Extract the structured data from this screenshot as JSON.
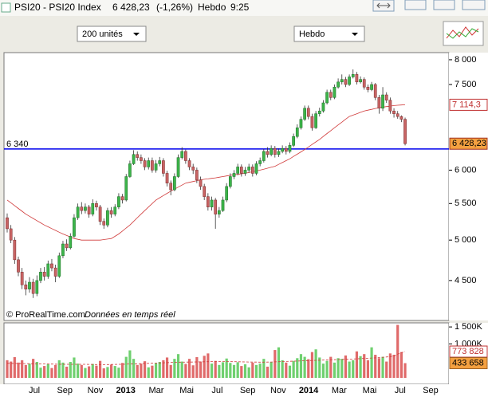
{
  "header": {
    "instrument": "PSI20 - PSI20 Index",
    "price": "6 428,23",
    "change": "(-1,26%)",
    "period": "Hebdo",
    "time": "9:25"
  },
  "toolbar": {
    "units": "200 unités",
    "period": "Hebdo"
  },
  "chart_data": [
    {
      "type": "candlestick",
      "log": true,
      "ylim": [
        4055,
        8150
      ],
      "yticks": [
        {
          "value": 8000,
          "label": "8 000"
        },
        {
          "value": 7500,
          "label": "7 500"
        },
        {
          "value": 6000,
          "label": "6 000"
        },
        {
          "value": 5500,
          "label": "5 500"
        },
        {
          "value": 5000,
          "label": "5 000"
        },
        {
          "value": 4500,
          "label": "4 500"
        }
      ],
      "credit": "© ProRealTime.com",
      "credit_note": "Données en temps réel",
      "up_color": "#3cb44a",
      "down_color": "#c86464",
      "last_label": "6 428,23",
      "open": [
        5300,
        5150,
        5000,
        4750,
        4600,
        4450,
        4400,
        4480,
        4350,
        4500,
        4600,
        4550,
        4700,
        4650,
        4550,
        4800,
        4950,
        4900,
        5050,
        5300,
        5450,
        5400,
        5450,
        5350,
        5500,
        5450,
        5250,
        5200,
        5400,
        5350,
        5450,
        5600,
        5550,
        5900,
        6100,
        6250,
        6200,
        6150,
        6050,
        6150,
        6000,
        6100,
        6150,
        5950,
        5800,
        5700,
        5900,
        6200,
        6300,
        6150,
        6050,
        6000,
        5850,
        5750,
        5600,
        5450,
        5550,
        5350,
        5400,
        5550,
        5750,
        5900,
        5950,
        6050,
        5950,
        6000,
        6050,
        5950,
        6100,
        6150,
        6300,
        6250,
        6350,
        6250,
        6300,
        6350,
        6300,
        6400,
        6550,
        6700,
        6850,
        7050,
        6900,
        6700,
        6950,
        7000,
        7150,
        7350,
        7250,
        7450,
        7550,
        7600,
        7500,
        7650,
        7700,
        7550,
        7600,
        7450,
        7400,
        7500,
        7250,
        7050,
        7300,
        7200,
        7000,
        6950,
        6900,
        6850
      ],
      "high": [
        5360,
        5200,
        5040,
        4790,
        4650,
        4500,
        4540,
        4520,
        4560,
        4650,
        4660,
        4740,
        4760,
        4690,
        4840,
        4990,
        5010,
        5090,
        5350,
        5500,
        5520,
        5500,
        5480,
        5560,
        5540,
        5480,
        5290,
        5440,
        5450,
        5490,
        5650,
        5640,
        5940,
        6150,
        6320,
        6300,
        6250,
        6190,
        6200,
        6200,
        6160,
        6210,
        6190,
        5990,
        5840,
        5950,
        6250,
        6370,
        6330,
        6190,
        6100,
        6040,
        5900,
        5790,
        5650,
        5600,
        5580,
        5450,
        5600,
        5800,
        5950,
        6000,
        6100,
        6090,
        6050,
        6100,
        6090,
        6140,
        6200,
        6340,
        6370,
        6400,
        6390,
        6350,
        6400,
        6390,
        6450,
        6600,
        6760,
        6900,
        7100,
        7100,
        6950,
        7000,
        7060,
        7200,
        7400,
        7400,
        7500,
        7620,
        7700,
        7650,
        7700,
        7800,
        7750,
        7660,
        7640,
        7500,
        7550,
        7530,
        7300,
        7450,
        7350,
        7250,
        7050,
        7000,
        6920,
        6880
      ],
      "low": [
        5100,
        4960,
        4700,
        4550,
        4400,
        4330,
        4360,
        4300,
        4320,
        4470,
        4500,
        4520,
        4610,
        4480,
        4530,
        4770,
        4860,
        4880,
        5030,
        5270,
        5350,
        5360,
        5300,
        5320,
        5400,
        5200,
        5150,
        5170,
        5300,
        5320,
        5420,
        5500,
        5530,
        5880,
        6080,
        6150,
        6100,
        6000,
        6010,
        5960,
        5960,
        6060,
        5900,
        5750,
        5620,
        5680,
        5880,
        6170,
        6100,
        6000,
        5940,
        5800,
        5700,
        5550,
        5400,
        5400,
        5150,
        5300,
        5380,
        5520,
        5720,
        5860,
        5920,
        5900,
        5910,
        5960,
        5900,
        5920,
        6060,
        6120,
        6200,
        6220,
        6200,
        6210,
        6270,
        6250,
        6270,
        6370,
        6520,
        6670,
        6820,
        6850,
        6650,
        6680,
        6900,
        6970,
        7120,
        7200,
        7220,
        7420,
        7500,
        7450,
        7470,
        7620,
        7500,
        7520,
        7400,
        7350,
        7370,
        7200,
        6950,
        7000,
        7150,
        6950,
        6880,
        6860,
        6800,
        6400
      ],
      "close": [
        5150,
        5000,
        4750,
        4600,
        4450,
        4400,
        4480,
        4350,
        4500,
        4600,
        4550,
        4700,
        4650,
        4550,
        4800,
        4950,
        4900,
        5050,
        5300,
        5450,
        5400,
        5450,
        5350,
        5500,
        5450,
        5250,
        5200,
        5400,
        5350,
        5450,
        5600,
        5550,
        5900,
        6100,
        6250,
        6200,
        6150,
        6050,
        6150,
        6000,
        6100,
        6150,
        5950,
        5800,
        5700,
        5900,
        6200,
        6300,
        6150,
        6050,
        6000,
        5850,
        5750,
        5600,
        5450,
        5550,
        5350,
        5400,
        5550,
        5750,
        5900,
        5950,
        6050,
        5950,
        6000,
        6050,
        5950,
        6100,
        6150,
        6300,
        6250,
        6350,
        6250,
        6300,
        6350,
        6300,
        6400,
        6550,
        6700,
        6850,
        7050,
        6900,
        6700,
        6950,
        7000,
        7150,
        7350,
        7250,
        7450,
        7550,
        7600,
        7500,
        7650,
        7700,
        7550,
        7600,
        7450,
        7400,
        7500,
        7250,
        7050,
        7300,
        7200,
        7000,
        6950,
        6900,
        6850,
        6428.23
      ],
      "lines": [
        {
          "color": "#d03a3a",
          "last_label": "7 114,3",
          "values": [
            5550,
            5510,
            5470,
            5430,
            5390,
            5350,
            5320,
            5290,
            5260,
            5230,
            5200,
            5176,
            5152,
            5128,
            5104,
            5080,
            5060,
            5040,
            5020,
            5010,
            5000,
            5000,
            5000,
            5000,
            5000,
            5000,
            5007,
            5013,
            5020,
            5050,
            5080,
            5120,
            5160,
            5200,
            5250,
            5300,
            5350,
            5400,
            5450,
            5500,
            5550,
            5583,
            5615,
            5648,
            5680,
            5710,
            5740,
            5770,
            5800,
            5812,
            5825,
            5838,
            5850,
            5858,
            5865,
            5873,
            5880,
            5890,
            5900,
            5910,
            5920,
            5928,
            5935,
            5943,
            5950,
            5963,
            5975,
            5988,
            6000,
            6015,
            6030,
            6045,
            6060,
            6090,
            6120,
            6150,
            6180,
            6218,
            6255,
            6293,
            6330,
            6373,
            6415,
            6458,
            6500,
            6550,
            6600,
            6650,
            6700,
            6750,
            6800,
            6850,
            6900,
            6925,
            6950,
            6975,
            7000,
            7015,
            7030,
            7045,
            7060,
            7070,
            7080,
            7090,
            7100,
            7105,
            7110,
            7114.3
          ]
        }
      ],
      "hlines": [
        {
          "value": 6340,
          "label": "6 340",
          "color": "#0000ee"
        }
      ]
    },
    {
      "type": "bar",
      "ylim": [
        0,
        1620000
      ],
      "yticks": [
        {
          "value": 1500000,
          "label": "1 500K"
        },
        {
          "value": 1000000,
          "label": "1 000K"
        }
      ],
      "up_color": "#6fd06f",
      "down_color": "#e06a6a",
      "last_label": "433 658",
      "x_labels": [
        "Jul",
        "Sep",
        "Nov",
        "2013",
        "Mar",
        "Mai",
        "Jul",
        "Sep",
        "Nov",
        "2014",
        "Mar",
        "Mai",
        "Jul",
        "Sep"
      ],
      "values": [
        520000,
        480000,
        610000,
        450000,
        520000,
        380000,
        420000,
        560000,
        470000,
        300000,
        350000,
        410000,
        290000,
        380000,
        520000,
        450000,
        330000,
        470000,
        600000,
        420000,
        380000,
        290000,
        340000,
        410000,
        360000,
        500000,
        280000,
        320000,
        390000,
        350000,
        300000,
        440000,
        620000,
        810000,
        560000,
        380000,
        420000,
        490000,
        310000,
        360000,
        430000,
        470000,
        520000,
        600000,
        380000,
        560000,
        700000,
        480000,
        410000,
        560000,
        370000,
        610000,
        480000,
        650000,
        720000,
        420000,
        500000,
        380000,
        460000,
        570000,
        440000,
        380000,
        460000,
        350000,
        400000,
        310000,
        450000,
        380000,
        420000,
        560000,
        330000,
        470000,
        820000,
        900000,
        520000,
        450000,
        360000,
        500000,
        580000,
        700000,
        620000,
        550000,
        760000,
        840000,
        600000,
        420000,
        500000,
        620000,
        450000,
        580000,
        560000,
        660000,
        480000,
        520000,
        780000,
        640000,
        700000,
        520000,
        900000,
        680000,
        580000,
        620000,
        480000,
        720000,
        680000,
        1560000,
        760000,
        433658
      ],
      "ma": {
        "color": "#d03a3a",
        "last_label": "773 828",
        "values": [
          430000,
          428000,
          426000,
          424000,
          422000,
          420000,
          418000,
          416000,
          414000,
          412000,
          410000,
          408000,
          406000,
          404000,
          402000,
          400000,
          400000,
          400000,
          400000,
          400000,
          400000,
          398000,
          396000,
          394000,
          392000,
          390000,
          390000,
          392000,
          394000,
          396000,
          398000,
          400000,
          404000,
          408000,
          412000,
          416000,
          420000,
          424000,
          428000,
          432000,
          436000,
          440000,
          444000,
          448000,
          452000,
          456000,
          460000,
          462000,
          464000,
          466000,
          468000,
          470000,
          472000,
          474000,
          476000,
          478000,
          480000,
          480000,
          480000,
          480000,
          478000,
          476000,
          474000,
          472000,
          470000,
          468000,
          466000,
          464000,
          462000,
          462000,
          464000,
          468000,
          472000,
          476000,
          480000,
          484000,
          488000,
          492000,
          496000,
          500000,
          504000,
          508000,
          512000,
          516000,
          520000,
          524000,
          528000,
          532000,
          536000,
          540000,
          544000,
          548000,
          552000,
          556000,
          560000,
          566000,
          572000,
          578000,
          584000,
          590000,
          598000,
          606000,
          616000,
          628000,
          644000,
          700000,
          740000,
          773828
        ]
      }
    }
  ]
}
